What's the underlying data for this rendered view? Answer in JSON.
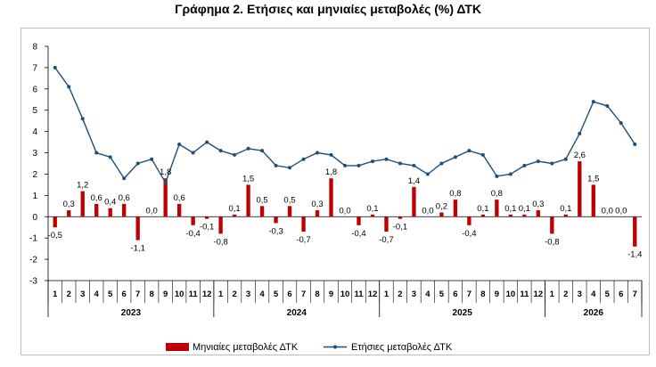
{
  "title": "Γράφημα 2. Ετήσιες και μηνιαίες μεταβολές (%) ΔΤΚ",
  "chart_data": {
    "type": "bar",
    "title": "Γράφημα 2. Ετήσιες και μηνιαίες μεταβολές (%) ΔΤΚ",
    "ylim": [
      -3,
      8
    ],
    "yticks": [
      8,
      7,
      6,
      5,
      4,
      3,
      2,
      1,
      0,
      -1,
      -2,
      -3
    ],
    "grid": false,
    "legend_position": "bottom",
    "years": [
      {
        "label": "2023",
        "months": 12
      },
      {
        "label": "2024",
        "months": 12
      },
      {
        "label": "2025",
        "months": 12
      },
      {
        "label": "2026",
        "months": 7
      }
    ],
    "categories": [
      "1",
      "2",
      "3",
      "4",
      "5",
      "6",
      "7",
      "8",
      "9",
      "10",
      "11",
      "12",
      "1",
      "2",
      "3",
      "4",
      "5",
      "6",
      "7",
      "8",
      "9",
      "10",
      "11",
      "12",
      "1",
      "2",
      "3",
      "4",
      "5",
      "6",
      "7",
      "8",
      "9",
      "10",
      "11",
      "12",
      "1",
      "2",
      "3",
      "4",
      "5",
      "6",
      "7"
    ],
    "series": [
      {
        "name": "Μηνιαίες μεταβολές ΔΤΚ",
        "type": "bar",
        "color": "#c00000",
        "values": [
          -0.5,
          0.3,
          1.2,
          0.6,
          0.4,
          0.6,
          -1.1,
          0.0,
          1.8,
          0.6,
          -0.4,
          -0.1,
          -0.8,
          0.1,
          1.5,
          0.5,
          -0.3,
          0.5,
          -0.7,
          0.3,
          1.8,
          0.0,
          -0.4,
          0.1,
          -0.7,
          -0.1,
          1.4,
          0.0,
          0.2,
          0.8,
          -0.4,
          0.1,
          0.8,
          0.1,
          0.1,
          0.3,
          -0.8,
          0.1,
          2.6,
          1.5,
          0.0,
          0.0,
          -1.4
        ],
        "labels": [
          "-0,5",
          "0,3",
          "1,2",
          "0,6",
          "0,4",
          "0,6",
          "-1,1",
          "0,0",
          "1,8",
          "0,6",
          "-0,4",
          "-0,1",
          "-0,8",
          "0,1",
          "1,5",
          "0,5",
          "-0,3",
          "0,5",
          "-0,7",
          "0,3",
          "1,8",
          "0,0",
          "-0,4",
          "0,1",
          "-0,7",
          "-0,1",
          "1,4",
          "0,0",
          "0,2",
          "0,8",
          "-0,4",
          "0,1",
          "0,8",
          "0,1",
          "0,1",
          "0,3",
          "-0,8",
          "0,1",
          "2,6",
          "1,5",
          "0,0",
          "0,0",
          "-1,4"
        ]
      },
      {
        "name": "Ετήσιες μεταβολές ΔΤΚ",
        "type": "line",
        "color": "#1f4e79",
        "values": [
          7.0,
          6.1,
          4.6,
          3.0,
          2.8,
          1.8,
          2.5,
          2.7,
          1.6,
          3.4,
          3.0,
          3.5,
          3.1,
          2.9,
          3.2,
          3.1,
          2.4,
          2.3,
          2.7,
          3.0,
          2.9,
          2.4,
          2.4,
          2.6,
          2.7,
          2.5,
          2.4,
          2.0,
          2.5,
          2.8,
          3.1,
          2.9,
          1.9,
          2.0,
          2.4,
          2.6,
          2.5,
          2.7,
          3.9,
          5.4,
          5.2,
          4.4,
          3.4
        ]
      }
    ]
  }
}
